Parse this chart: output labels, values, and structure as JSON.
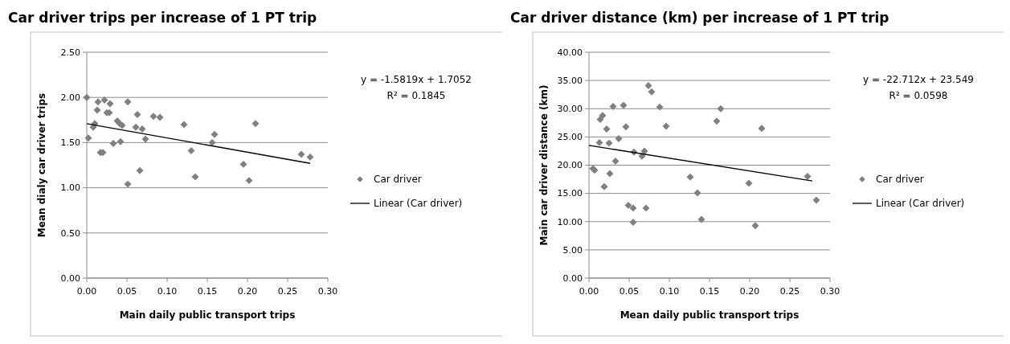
{
  "chart_data": [
    {
      "type": "scatter",
      "title": "Car driver trips per increase of 1 PT trip",
      "xlabel": "Main daily public transport trips",
      "ylabel": "Mean dialy car driver trips",
      "xlim": [
        0,
        0.3
      ],
      "xticks": [
        {
          "value": 0,
          "label": "0.00"
        },
        {
          "value": 0.05,
          "label": "0.05"
        },
        {
          "value": 0.1,
          "label": "0.10"
        },
        {
          "value": 0.15,
          "label": "0.15"
        },
        {
          "value": 0.2,
          "label": "0.20"
        },
        {
          "value": 0.25,
          "label": "0.25"
        },
        {
          "value": 0.3,
          "label": "0.30"
        }
      ],
      "ylim": [
        0,
        2.5
      ],
      "yticks": [
        {
          "value": 0,
          "label": "0.00"
        },
        {
          "value": 0.5,
          "label": "0.50"
        },
        {
          "value": 1,
          "label": "1.00"
        },
        {
          "value": 1.5,
          "label": "1.50"
        },
        {
          "value": 2,
          "label": "2.00"
        },
        {
          "value": 2.5,
          "label": "2.50"
        }
      ],
      "grid": "y",
      "legend": "right",
      "annotations": [
        "y = -1.5819x + 1.7052",
        "R² = 0.1845"
      ],
      "series": [
        {
          "name": "Car driver",
          "color": "#808080",
          "marker": "diamond",
          "x": [
            0,
            0.002,
            0.01,
            0.008,
            0.013,
            0.014,
            0.017,
            0.02,
            0.022,
            0.029,
            0.025,
            0.028,
            0.033,
            0.038,
            0.041,
            0.044,
            0.042,
            0.051,
            0.051,
            0.063,
            0.061,
            0.069,
            0.073,
            0.066,
            0.083,
            0.091,
            0.121,
            0.13,
            0.135,
            0.156,
            0.159,
            0.195,
            0.202,
            0.21,
            0.267,
            0.278
          ],
          "values": [
            2.0,
            1.55,
            1.71,
            1.67,
            1.86,
            1.95,
            1.39,
            1.39,
            1.97,
            1.93,
            1.83,
            1.83,
            1.49,
            1.74,
            1.71,
            1.69,
            1.51,
            1.95,
            1.04,
            1.81,
            1.67,
            1.65,
            1.54,
            1.19,
            1.79,
            1.78,
            1.7,
            1.41,
            1.12,
            1.5,
            1.59,
            1.26,
            1.08,
            1.71,
            1.37,
            1.34
          ]
        },
        {
          "name": "Linear (Car driver)",
          "type": "line",
          "color": "#000000",
          "marker": "none",
          "x": [
            0,
            0.278
          ],
          "values": [
            1.71,
            1.27
          ]
        }
      ]
    },
    {
      "type": "scatter",
      "title": "Car driver distance (km) per increase of 1 PT trip",
      "xlabel": "Mean daily public transport trips",
      "ylabel": "Main car driver distance (km)",
      "xlim": [
        0,
        0.3
      ],
      "xticks": [
        {
          "value": 0,
          "label": "0.00"
        },
        {
          "value": 0.05,
          "label": "0.05"
        },
        {
          "value": 0.1,
          "label": "0.10"
        },
        {
          "value": 0.15,
          "label": "0.15"
        },
        {
          "value": 0.2,
          "label": "0.20"
        },
        {
          "value": 0.25,
          "label": "0.25"
        },
        {
          "value": 0.3,
          "label": "0.30"
        }
      ],
      "ylim": [
        0,
        40
      ],
      "yticks": [
        {
          "value": 0,
          "label": "0.00"
        },
        {
          "value": 5,
          "label": "5.00"
        },
        {
          "value": 10,
          "label": "10.00"
        },
        {
          "value": 15,
          "label": "15.00"
        },
        {
          "value": 20,
          "label": "20.00"
        },
        {
          "value": 25,
          "label": "25.00"
        },
        {
          "value": 30,
          "label": "30.00"
        },
        {
          "value": 35,
          "label": "35.00"
        },
        {
          "value": 40,
          "label": "40.00"
        }
      ],
      "grid": "y",
      "legend": "right",
      "annotations": [
        "y = -22.712x + 23.549",
        "R² = 0.0598"
      ],
      "series": [
        {
          "name": "Car driver",
          "color": "#808080",
          "marker": "diamond",
          "x": [
            0.005,
            0.007,
            0.013,
            0.014,
            0.017,
            0.019,
            0.022,
            0.025,
            0.026,
            0.03,
            0.033,
            0.037,
            0.043,
            0.046,
            0.049,
            0.055,
            0.055,
            0.056,
            0.066,
            0.069,
            0.071,
            0.074,
            0.078,
            0.088,
            0.096,
            0.126,
            0.135,
            0.14,
            0.159,
            0.164,
            0.199,
            0.207,
            0.215,
            0.272,
            0.283
          ],
          "values": [
            19.4,
            19.1,
            24.0,
            28.1,
            28.8,
            16.2,
            26.4,
            23.9,
            18.5,
            30.4,
            20.7,
            24.7,
            30.6,
            26.8,
            12.9,
            12.4,
            9.9,
            22.3,
            21.6,
            22.5,
            12.4,
            34.1,
            33.0,
            30.3,
            26.9,
            17.9,
            15.1,
            10.4,
            27.8,
            30.0,
            16.8,
            9.3,
            26.5,
            18.0,
            13.8
          ]
        },
        {
          "name": "Linear (Car driver)",
          "type": "line",
          "color": "#000000",
          "marker": "none",
          "x": [
            0,
            0.278
          ],
          "values": [
            23.5,
            17.2
          ]
        }
      ]
    }
  ]
}
